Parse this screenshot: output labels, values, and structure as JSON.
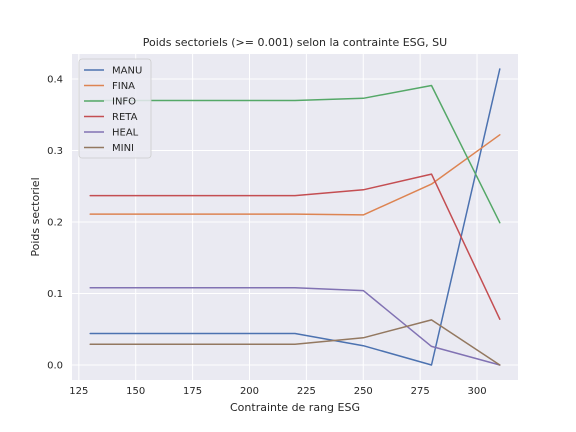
{
  "chart_data": {
    "type": "line",
    "title": "Poids sectoriels (>= 0.001) selon la contrainte ESG, SU",
    "xlabel": "Contrainte de rang ESG",
    "ylabel": "Poids sectoriel",
    "xlim": [
      122,
      318
    ],
    "ylim": [
      -0.021,
      0.435
    ],
    "xticks": [
      125,
      150,
      175,
      200,
      225,
      250,
      275,
      300
    ],
    "yticks": [
      0.0,
      0.1,
      0.2,
      0.3,
      0.4
    ],
    "ytick_labels": [
      "0.0",
      "0.1",
      "0.2",
      "0.3",
      "0.4"
    ],
    "grid": true,
    "legend_position": "top-left",
    "x": [
      130,
      220,
      250,
      280,
      310
    ],
    "series": [
      {
        "name": "MANU",
        "color": "#4c72b0",
        "values": [
          0.044,
          0.044,
          0.027,
          0.0,
          0.414
        ]
      },
      {
        "name": "FINA",
        "color": "#dd8452",
        "values": [
          0.211,
          0.211,
          0.21,
          0.253,
          0.322
        ]
      },
      {
        "name": "INFO",
        "color": "#55a868",
        "values": [
          0.37,
          0.37,
          0.373,
          0.391,
          0.199
        ]
      },
      {
        "name": "RETA",
        "color": "#c44e52",
        "values": [
          0.237,
          0.237,
          0.245,
          0.267,
          0.064
        ]
      },
      {
        "name": "HEAL",
        "color": "#8172b3",
        "values": [
          0.108,
          0.108,
          0.104,
          0.026,
          0.0
        ]
      },
      {
        "name": "MINI",
        "color": "#937860",
        "values": [
          0.029,
          0.029,
          0.038,
          0.063,
          0.0
        ]
      }
    ],
    "colors": {
      "background": "#ffffff",
      "plot_background": "#eaeaf2",
      "grid": "#ffffff"
    }
  }
}
